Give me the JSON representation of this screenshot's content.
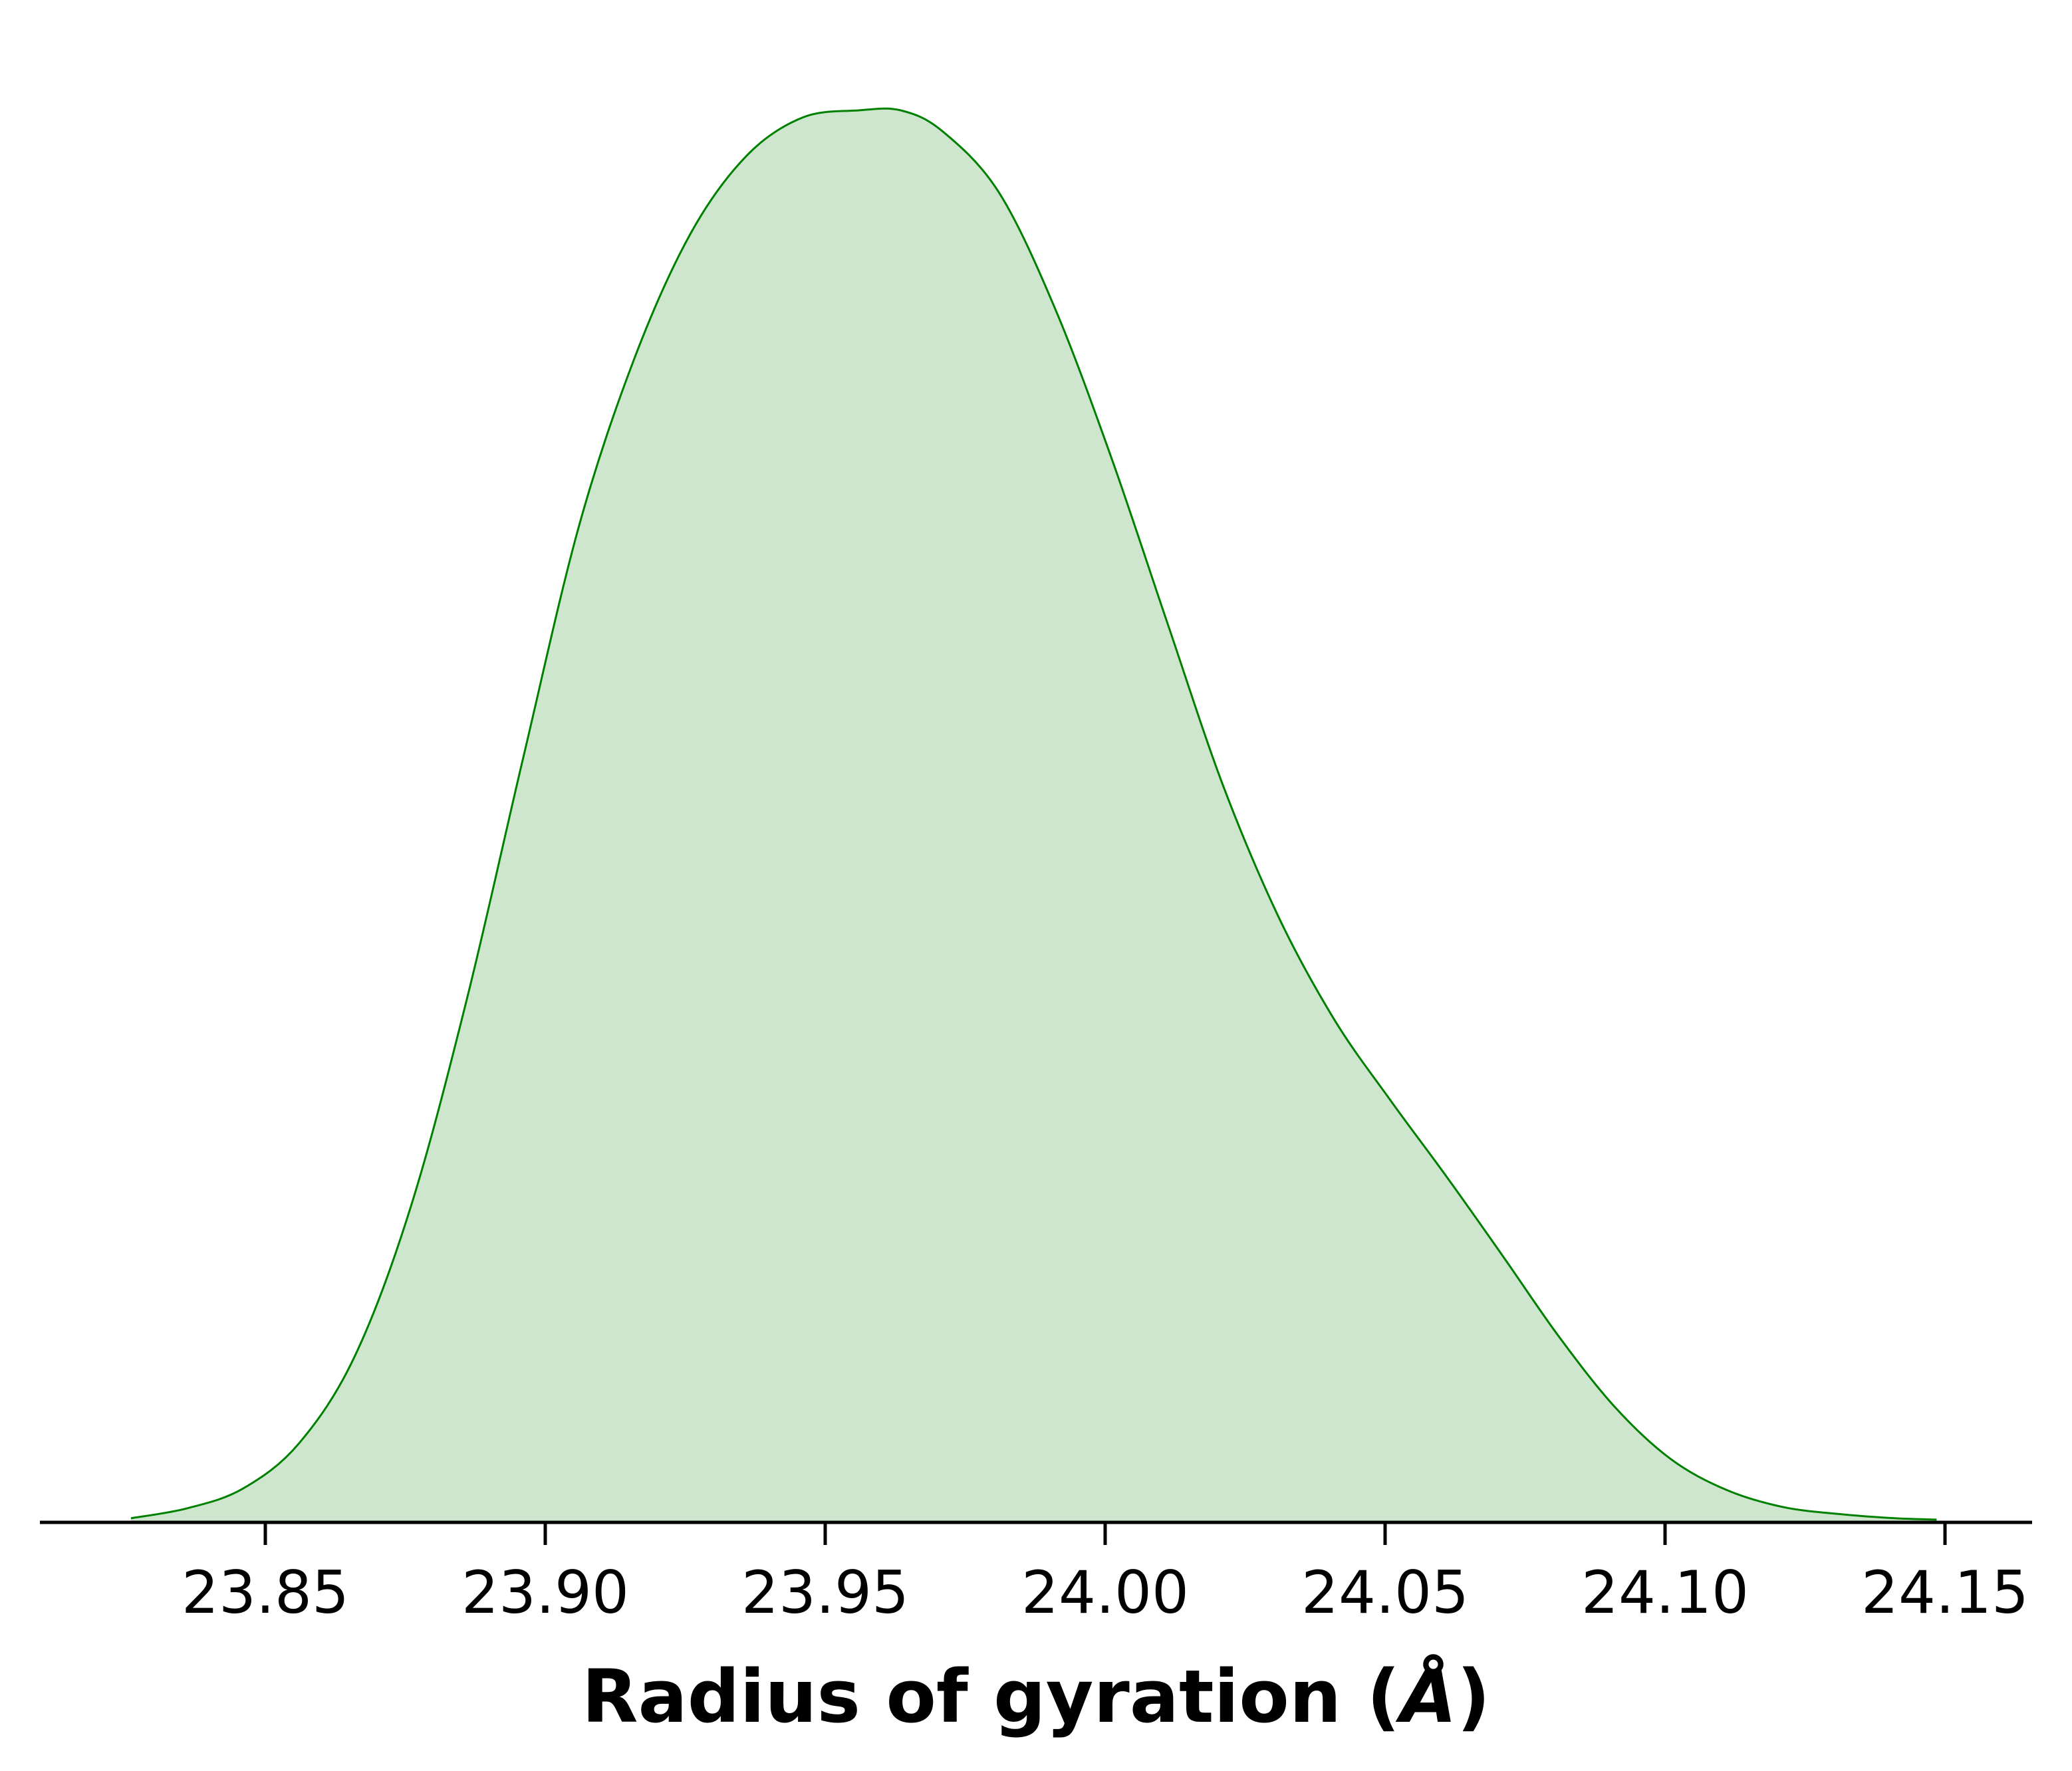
{
  "chart_data": {
    "type": "area",
    "title": "",
    "xlabel": "Radius of gyration (Å)",
    "xlabel_main": "Radius of gyration (",
    "xlabel_unit": "Å",
    "xlabel_close": ")",
    "ylabel": "",
    "xlim": [
      23.81,
      24.165
    ],
    "ylim": [
      0,
      1.0
    ],
    "grid": false,
    "legend": "none",
    "xticks": [
      23.85,
      23.9,
      23.95,
      24.0,
      24.05,
      24.1,
      24.15
    ],
    "xtick_labels": [
      "23.85",
      "23.90",
      "23.95",
      "24.00",
      "24.05",
      "24.10",
      "24.15"
    ],
    "series": [
      {
        "color": "#008000",
        "fill_color": "#cde6cd",
        "x": [
          23.826,
          23.836,
          23.846,
          23.856,
          23.866,
          23.876,
          23.886,
          23.896,
          23.906,
          23.916,
          23.926,
          23.936,
          23.946,
          23.956,
          23.9635,
          23.971,
          23.981,
          23.991,
          24.001,
          24.011,
          24.021,
          24.031,
          24.041,
          24.051,
          24.061,
          24.071,
          24.081,
          24.091,
          24.101,
          24.111,
          24.121,
          24.131,
          24.141,
          24.1485
        ],
        "y": [
          0.002,
          0.009,
          0.023,
          0.055,
          0.117,
          0.223,
          0.37,
          0.54,
          0.705,
          0.825,
          0.913,
          0.968,
          0.995,
          1.0,
          1.0,
          0.985,
          0.942,
          0.86,
          0.755,
          0.638,
          0.522,
          0.428,
          0.355,
          0.298,
          0.244,
          0.188,
          0.131,
          0.081,
          0.044,
          0.022,
          0.01,
          0.005,
          0.002,
          0.001
        ]
      }
    ]
  }
}
